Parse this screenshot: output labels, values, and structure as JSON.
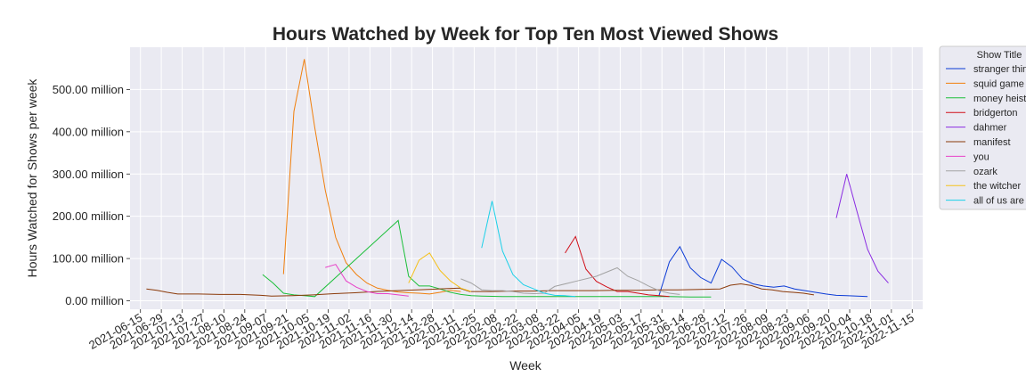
{
  "chart_data": {
    "type": "line",
    "title": "Hours Watched by Week for Top Ten Most Viewed Shows",
    "xlabel": "Week",
    "ylabel": "Hours Watched for Shows per week",
    "xlim": [
      "2021-06-08",
      "2022-11-22"
    ],
    "ylim": [
      -20,
      600
    ],
    "yticks": [
      {
        "value": 0,
        "label": "0.00 million"
      },
      {
        "value": 100,
        "label": "100.00 million"
      },
      {
        "value": 200,
        "label": "200.00 million"
      },
      {
        "value": 300,
        "label": "300.00 million"
      },
      {
        "value": 400,
        "label": "400.00 million"
      },
      {
        "value": 500,
        "label": "500.00 million"
      }
    ],
    "xticks": [
      "2021-06-15",
      "2021-06-29",
      "2021-07-13",
      "2021-07-27",
      "2021-08-10",
      "2021-08-24",
      "2021-09-07",
      "2021-09-21",
      "2021-10-05",
      "2021-10-19",
      "2021-11-02",
      "2021-11-16",
      "2021-11-30",
      "2021-12-14",
      "2021-12-28",
      "2022-01-11",
      "2022-01-25",
      "2022-02-08",
      "2022-02-22",
      "2022-03-08",
      "2022-03-22",
      "2022-04-05",
      "2022-04-19",
      "2022-05-03",
      "2022-05-17",
      "2022-05-31",
      "2022-06-14",
      "2022-06-28",
      "2022-07-12",
      "2022-07-26",
      "2022-08-09",
      "2022-08-23",
      "2022-09-06",
      "2022-09-20",
      "2022-10-04",
      "2022-10-18",
      "2022-11-01",
      "2022-11-15"
    ],
    "grid": true,
    "legend": {
      "title": "Show Title",
      "placement": "outside upper right"
    },
    "series": [
      {
        "name": "stranger things",
        "color": "#0b3bd6",
        "points": [
          [
            "2022-05-29",
            12
          ],
          [
            "2022-06-05",
            92
          ],
          [
            "2022-06-12",
            128
          ],
          [
            "2022-06-19",
            78
          ],
          [
            "2022-06-26",
            55
          ],
          [
            "2022-07-03",
            42
          ],
          [
            "2022-07-10",
            98
          ],
          [
            "2022-07-17",
            80
          ],
          [
            "2022-07-24",
            52
          ],
          [
            "2022-07-31",
            40
          ],
          [
            "2022-08-07",
            35
          ],
          [
            "2022-08-14",
            32
          ],
          [
            "2022-08-21",
            35
          ],
          [
            "2022-08-28",
            28
          ],
          [
            "2022-09-04",
            24
          ],
          [
            "2022-09-11",
            20
          ],
          [
            "2022-09-18",
            16
          ],
          [
            "2022-09-25",
            13
          ],
          [
            "2022-10-02",
            12
          ],
          [
            "2022-10-09",
            11
          ],
          [
            "2022-10-16",
            10
          ]
        ]
      },
      {
        "name": "squid game",
        "color": "#f07f0c",
        "points": [
          [
            "2021-09-19",
            63
          ],
          [
            "2021-09-26",
            448
          ],
          [
            "2021-10-03",
            572
          ],
          [
            "2021-10-10",
            410
          ],
          [
            "2021-10-17",
            262
          ],
          [
            "2021-10-24",
            150
          ],
          [
            "2021-10-31",
            90
          ],
          [
            "2021-11-07",
            62
          ],
          [
            "2021-11-14",
            42
          ],
          [
            "2021-11-21",
            30
          ],
          [
            "2021-11-28",
            25
          ],
          [
            "2021-12-05",
            21
          ],
          [
            "2021-12-12",
            19
          ],
          [
            "2021-12-19",
            18
          ],
          [
            "2021-12-26",
            16
          ],
          [
            "2022-01-02",
            20
          ],
          [
            "2022-01-09",
            25
          ],
          [
            "2022-01-16",
            22
          ]
        ]
      },
      {
        "name": "money heist",
        "color": "#1cbf3a",
        "points": [
          [
            "2021-09-05",
            62
          ],
          [
            "2021-09-12",
            42
          ],
          [
            "2021-09-19",
            18
          ],
          [
            "2021-09-26",
            14
          ],
          [
            "2021-10-03",
            12
          ],
          [
            "2021-10-10",
            10
          ],
          [
            "2021-12-05",
            190
          ],
          [
            "2021-12-12",
            58
          ],
          [
            "2021-12-19",
            35
          ],
          [
            "2021-12-26",
            35
          ],
          [
            "2022-01-02",
            28
          ],
          [
            "2022-01-09",
            20
          ],
          [
            "2022-01-16",
            15
          ],
          [
            "2022-01-23",
            12
          ],
          [
            "2022-01-30",
            11
          ],
          [
            "2022-02-13",
            10
          ],
          [
            "2022-02-27",
            10
          ],
          [
            "2022-03-13",
            10
          ],
          [
            "2022-03-27",
            10
          ],
          [
            "2022-04-10",
            10
          ],
          [
            "2022-04-24",
            10
          ],
          [
            "2022-05-08",
            10
          ],
          [
            "2022-05-22",
            10
          ],
          [
            "2022-06-05",
            10
          ],
          [
            "2022-06-19",
            9
          ],
          [
            "2022-07-03",
            9
          ]
        ]
      },
      {
        "name": "bridgerton",
        "color": "#d00e18",
        "points": [
          [
            "2022-03-27",
            113
          ],
          [
            "2022-04-03",
            152
          ],
          [
            "2022-04-10",
            75
          ],
          [
            "2022-04-17",
            46
          ],
          [
            "2022-04-24",
            33
          ],
          [
            "2022-05-01",
            22
          ],
          [
            "2022-05-08",
            22
          ],
          [
            "2022-05-15",
            18
          ],
          [
            "2022-05-22",
            14
          ],
          [
            "2022-05-29",
            12
          ],
          [
            "2022-06-05",
            10
          ]
        ]
      },
      {
        "name": "dahmer",
        "color": "#8a2be2",
        "points": [
          [
            "2022-09-25",
            196
          ],
          [
            "2022-10-02",
            300
          ],
          [
            "2022-10-09",
            210
          ],
          [
            "2022-10-16",
            122
          ],
          [
            "2022-10-23",
            70
          ],
          [
            "2022-10-30",
            42
          ]
        ]
      },
      {
        "name": "manifest",
        "color": "#8b3a0a",
        "points": [
          [
            "2021-06-19",
            28
          ],
          [
            "2021-06-26",
            25
          ],
          [
            "2021-07-03",
            20
          ],
          [
            "2021-07-10",
            16
          ],
          [
            "2021-07-24",
            16
          ],
          [
            "2021-08-07",
            15
          ],
          [
            "2021-08-21",
            15
          ],
          [
            "2021-09-04",
            13
          ],
          [
            "2021-09-11",
            11
          ],
          [
            "2021-09-25",
            12
          ],
          [
            "2021-10-09",
            14
          ],
          [
            "2021-10-23",
            17
          ],
          [
            "2021-11-06",
            19
          ],
          [
            "2021-11-20",
            22
          ],
          [
            "2021-12-04",
            24
          ],
          [
            "2021-12-18",
            26
          ],
          [
            "2022-01-01",
            28
          ],
          [
            "2022-01-15",
            30
          ],
          [
            "2022-01-22",
            22
          ],
          [
            "2022-02-05",
            22
          ],
          [
            "2022-02-19",
            23
          ],
          [
            "2022-03-05",
            23
          ],
          [
            "2022-03-19",
            24
          ],
          [
            "2022-04-02",
            24
          ],
          [
            "2022-04-16",
            24
          ],
          [
            "2022-04-30",
            25
          ],
          [
            "2022-05-14",
            25
          ],
          [
            "2022-05-28",
            26
          ],
          [
            "2022-06-11",
            26
          ],
          [
            "2022-06-25",
            27
          ],
          [
            "2022-07-09",
            28
          ],
          [
            "2022-07-16",
            37
          ],
          [
            "2022-07-23",
            40
          ],
          [
            "2022-07-30",
            36
          ],
          [
            "2022-08-06",
            28
          ],
          [
            "2022-08-13",
            26
          ],
          [
            "2022-08-20",
            22
          ],
          [
            "2022-08-27",
            20
          ],
          [
            "2022-09-03",
            18
          ],
          [
            "2022-09-10",
            14
          ]
        ]
      },
      {
        "name": "you",
        "color": "#e842c8",
        "points": [
          [
            "2021-10-17",
            79
          ],
          [
            "2021-10-24",
            86
          ],
          [
            "2021-10-31",
            47
          ],
          [
            "2021-11-07",
            32
          ],
          [
            "2021-11-14",
            22
          ],
          [
            "2021-11-21",
            17
          ],
          [
            "2021-11-28",
            17
          ],
          [
            "2021-12-05",
            14
          ],
          [
            "2021-12-12",
            11
          ]
        ]
      },
      {
        "name": "ozark",
        "color": "#a3a3a3",
        "points": [
          [
            "2022-01-16",
            52
          ],
          [
            "2022-01-23",
            42
          ],
          [
            "2022-01-30",
            26
          ],
          [
            "2022-02-06",
            24
          ],
          [
            "2022-02-13",
            24
          ],
          [
            "2022-02-20",
            22
          ],
          [
            "2022-02-27",
            18
          ],
          [
            "2022-03-06",
            17
          ],
          [
            "2022-03-13",
            18
          ],
          [
            "2022-03-20",
            34
          ],
          [
            "2022-04-03",
            46
          ],
          [
            "2022-04-17",
            58
          ],
          [
            "2022-05-01",
            78
          ],
          [
            "2022-05-08",
            58
          ],
          [
            "2022-05-15",
            48
          ],
          [
            "2022-05-22",
            35
          ],
          [
            "2022-05-29",
            24
          ],
          [
            "2022-06-05",
            18
          ],
          [
            "2022-06-12",
            15
          ]
        ]
      },
      {
        "name": "the witcher",
        "color": "#f5c11c",
        "points": [
          [
            "2021-12-12",
            42
          ],
          [
            "2021-12-19",
            96
          ],
          [
            "2021-12-26",
            113
          ],
          [
            "2022-01-02",
            72
          ],
          [
            "2022-01-09",
            47
          ],
          [
            "2022-01-16",
            30
          ],
          [
            "2022-01-23",
            22
          ]
        ]
      },
      {
        "name": "all of us are dead",
        "color": "#1ad0e8",
        "points": [
          [
            "2022-01-30",
            125
          ],
          [
            "2022-02-06",
            236
          ],
          [
            "2022-02-13",
            118
          ],
          [
            "2022-02-20",
            62
          ],
          [
            "2022-02-27",
            38
          ],
          [
            "2022-03-06",
            28
          ],
          [
            "2022-03-13",
            18
          ],
          [
            "2022-03-20",
            13
          ],
          [
            "2022-03-27",
            12
          ],
          [
            "2022-04-03",
            10
          ]
        ]
      }
    ]
  }
}
